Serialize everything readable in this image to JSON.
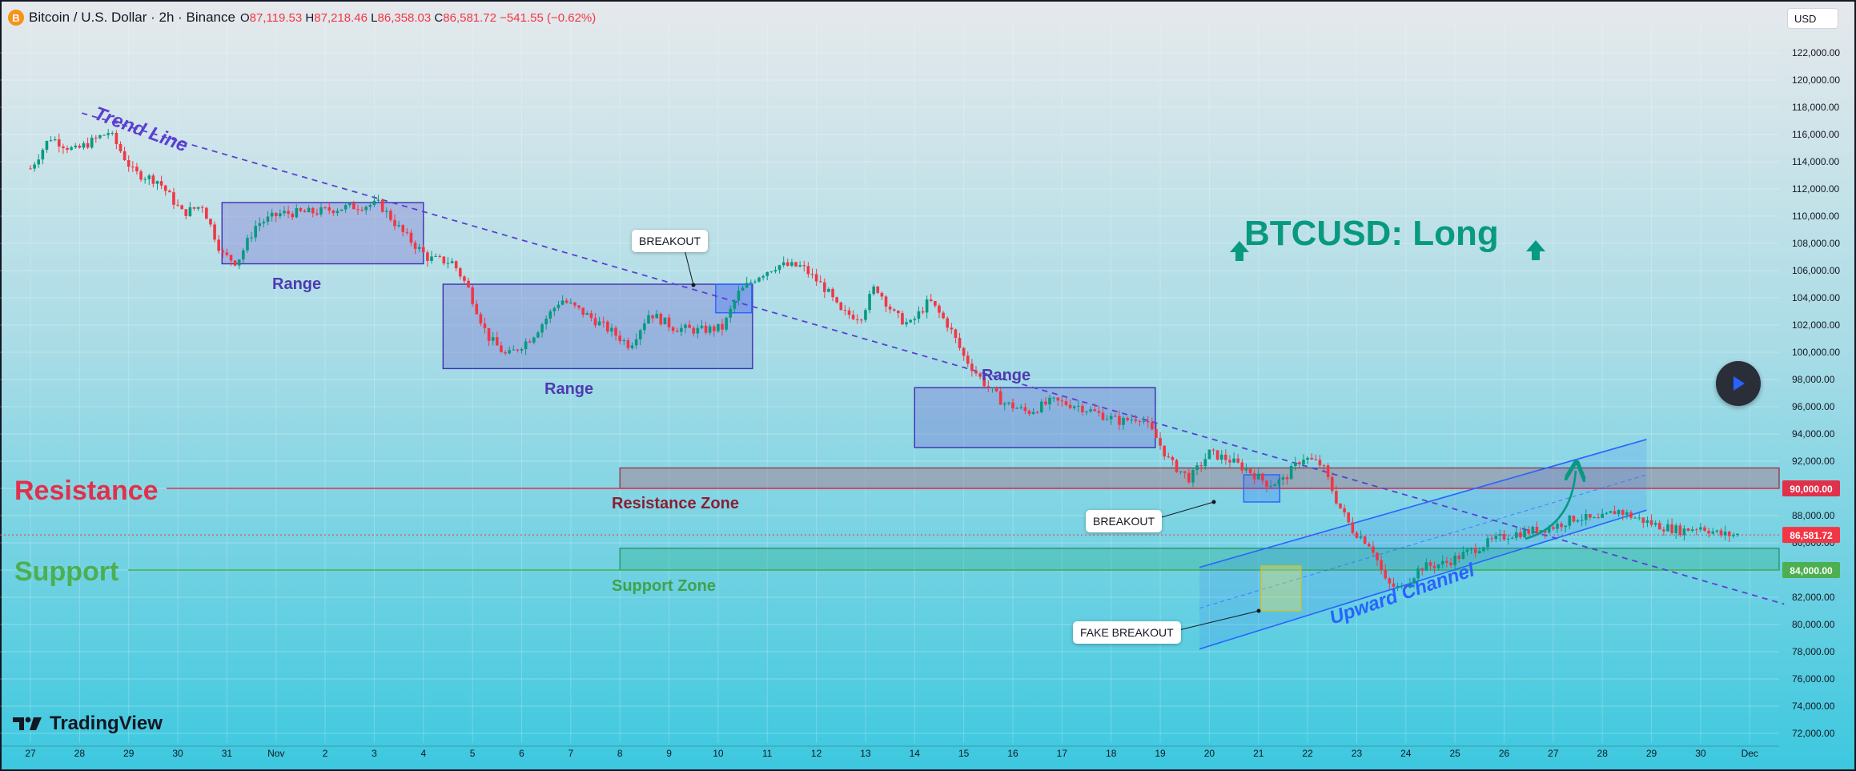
{
  "header": {
    "coin_icon": "bitcoin-icon",
    "coin_glyph": "B",
    "symbol_title": "Bitcoin / U.S. Dollar · 2h · Binance",
    "ohlc": {
      "open_label": "O",
      "open": "87,119.53",
      "high_label": "H",
      "high": "87,218.46",
      "low_label": "L",
      "low": "86,358.03",
      "close_label": "C",
      "close": "86,581.72",
      "change": "−541.55 (−0.62%)"
    }
  },
  "currency_button": "USD",
  "logo_text": "TradingView",
  "colors": {
    "up": "#089981",
    "down": "#f23645",
    "range_box": "#5b4bb7",
    "resistance": "#e0314b",
    "support": "#4caf50",
    "channel": "#2962ff",
    "signal": "#089981"
  },
  "annotations": {
    "trend_line": "Trend Line",
    "range_1": "Range",
    "range_2": "Range",
    "range_3": "Range",
    "breakout_1": "BREAKOUT",
    "breakout_2": "BREAKOUT",
    "fake_breakout": "FAKE BREAKOUT",
    "resistance": "Resistance",
    "resistance_zone": "Resistance Zone",
    "support": "Support",
    "support_zone": "Support Zone",
    "upward_channel": "Upward Channel",
    "signal": "BTCUSD: Long"
  },
  "price_tags": {
    "resistance": "90,000.00",
    "last": "86,581.72",
    "support": "84,000.00"
  },
  "chart_data": {
    "type": "candlestick",
    "symbol": "BTCUSD",
    "interval": "2h",
    "y_range": [
      71000,
      123000
    ],
    "y_ticks": [
      "72,000.00",
      "74,000.00",
      "76,000.00",
      "78,000.00",
      "80,000.00",
      "82,000.00",
      "84,000.00",
      "86,000.00",
      "88,000.00",
      "90,000.00",
      "92,000.00",
      "94,000.00",
      "96,000.00",
      "98,000.00",
      "100,000.00",
      "102,000.00",
      "104,000.00",
      "106,000.00",
      "108,000.00",
      "110,000.00",
      "112,000.00",
      "114,000.00",
      "116,000.00",
      "118,000.00",
      "120,000.00",
      "122,000.00"
    ],
    "x_ticks": [
      "27",
      "28",
      "29",
      "30",
      "31",
      "Nov",
      "2",
      "3",
      "4",
      "5",
      "6",
      "7",
      "8",
      "9",
      "10",
      "11",
      "12",
      "13",
      "14",
      "15",
      "16",
      "17",
      "18",
      "19",
      "20",
      "21",
      "22",
      "23",
      "24",
      "25",
      "26",
      "27",
      "28",
      "29",
      "30",
      "Dec"
    ],
    "price_path": [
      [
        0,
        113500
      ],
      [
        0.4,
        115800
      ],
      [
        0.9,
        114800
      ],
      [
        1.6,
        116200
      ],
      [
        2.1,
        113200
      ],
      [
        2.6,
        112600
      ],
      [
        3.1,
        110200
      ],
      [
        3.5,
        110800
      ],
      [
        3.9,
        107200
      ],
      [
        4.2,
        106600
      ],
      [
        4.6,
        109400
      ],
      [
        5.1,
        110200
      ],
      [
        5.8,
        110300
      ],
      [
        6.3,
        110600
      ],
      [
        7.1,
        110900
      ],
      [
        7.6,
        108700
      ],
      [
        8.1,
        106900
      ],
      [
        8.6,
        106600
      ],
      [
        8.9,
        104800
      ],
      [
        9.3,
        101200
      ],
      [
        9.7,
        99700
      ],
      [
        10.2,
        101100
      ],
      [
        10.8,
        103900
      ],
      [
        11.3,
        102800
      ],
      [
        11.8,
        101600
      ],
      [
        12.2,
        100500
      ],
      [
        12.6,
        102900
      ],
      [
        13.1,
        101800
      ],
      [
        13.6,
        101600
      ],
      [
        14.1,
        101800
      ],
      [
        14.4,
        104300
      ],
      [
        14.8,
        105600
      ],
      [
        15.2,
        106400
      ],
      [
        15.7,
        106300
      ],
      [
        16.2,
        104600
      ],
      [
        16.5,
        102900
      ],
      [
        16.9,
        102600
      ],
      [
        17.2,
        104900
      ],
      [
        17.6,
        102700
      ],
      [
        17.9,
        102000
      ],
      [
        18.3,
        103800
      ],
      [
        18.7,
        101900
      ],
      [
        19.0,
        99700
      ],
      [
        19.4,
        97800
      ],
      [
        19.8,
        96300
      ],
      [
        20.3,
        95600
      ],
      [
        20.8,
        96400
      ],
      [
        21.3,
        96100
      ],
      [
        21.8,
        95400
      ],
      [
        22.2,
        94900
      ],
      [
        22.6,
        95300
      ],
      [
        22.9,
        93800
      ],
      [
        23.2,
        91900
      ],
      [
        23.6,
        90700
      ],
      [
        24.0,
        92600
      ],
      [
        24.4,
        92100
      ],
      [
        24.8,
        91300
      ],
      [
        25.2,
        90300
      ],
      [
        25.5,
        90600
      ],
      [
        25.9,
        92300
      ],
      [
        26.3,
        91700
      ],
      [
        26.6,
        89000
      ],
      [
        26.9,
        87000
      ],
      [
        27.3,
        85800
      ],
      [
        27.6,
        83000
      ],
      [
        27.9,
        82600
      ],
      [
        28.3,
        84200
      ],
      [
        28.8,
        84500
      ],
      [
        29.2,
        85200
      ],
      [
        29.6,
        85900
      ],
      [
        30.1,
        86600
      ],
      [
        30.6,
        86900
      ],
      [
        31.0,
        87200
      ],
      [
        31.5,
        87900
      ],
      [
        31.9,
        87600
      ],
      [
        32.3,
        88400
      ],
      [
        32.7,
        87800
      ],
      [
        33.1,
        87300
      ],
      [
        33.6,
        86900
      ],
      [
        34.0,
        87200
      ],
      [
        34.4,
        86600
      ],
      [
        34.8,
        86580
      ]
    ],
    "markers": {
      "range_boxes": [
        {
          "label": "Range",
          "t": [
            3.9,
            8.0
          ],
          "price": [
            106500,
            111000
          ]
        },
        {
          "label": "Range",
          "t": [
            8.4,
            14.7
          ],
          "price": [
            98800,
            105000
          ]
        },
        {
          "label": "Range",
          "t": [
            18.0,
            22.9
          ],
          "price": [
            93000,
            97400
          ]
        }
      ],
      "trend_line": {
        "label": "Trend Line",
        "from": [
          1.7,
          117100
        ],
        "to": [
          35.7,
          81500
        ]
      },
      "resistance_zone": {
        "label": "Resistance Zone",
        "t": [
          12.0,
          36.0
        ],
        "price": [
          90000,
          91500
        ]
      },
      "resistance_level": {
        "label": "Resistance",
        "price": 90000
      },
      "support_zone": {
        "label": "Support Zone",
        "t": [
          12.0,
          36.0
        ],
        "price": [
          84000,
          85600
        ]
      },
      "support_level": {
        "label": "Support",
        "price": 84000
      },
      "upward_channel": {
        "label": "Upward Channel",
        "lower": [
          [
            23.8,
            78200
          ],
          [
            32.9,
            88400
          ]
        ],
        "upper": [
          [
            23.8,
            84200
          ],
          [
            32.9,
            93600
          ]
        ]
      },
      "breakouts": [
        {
          "label": "BREAKOUT",
          "t": 14.05,
          "price": 105000
        },
        {
          "label": "BREAKOUT",
          "t": 24.7,
          "price": 89000
        },
        {
          "label": "FAKE BREAKOUT",
          "t": 25.6,
          "price": 81200
        }
      ],
      "signal": {
        "label": "BTCUSD: Long",
        "direction": "long",
        "target": [
          32.3,
          90700
        ]
      },
      "last_price": 86581.72
    }
  }
}
